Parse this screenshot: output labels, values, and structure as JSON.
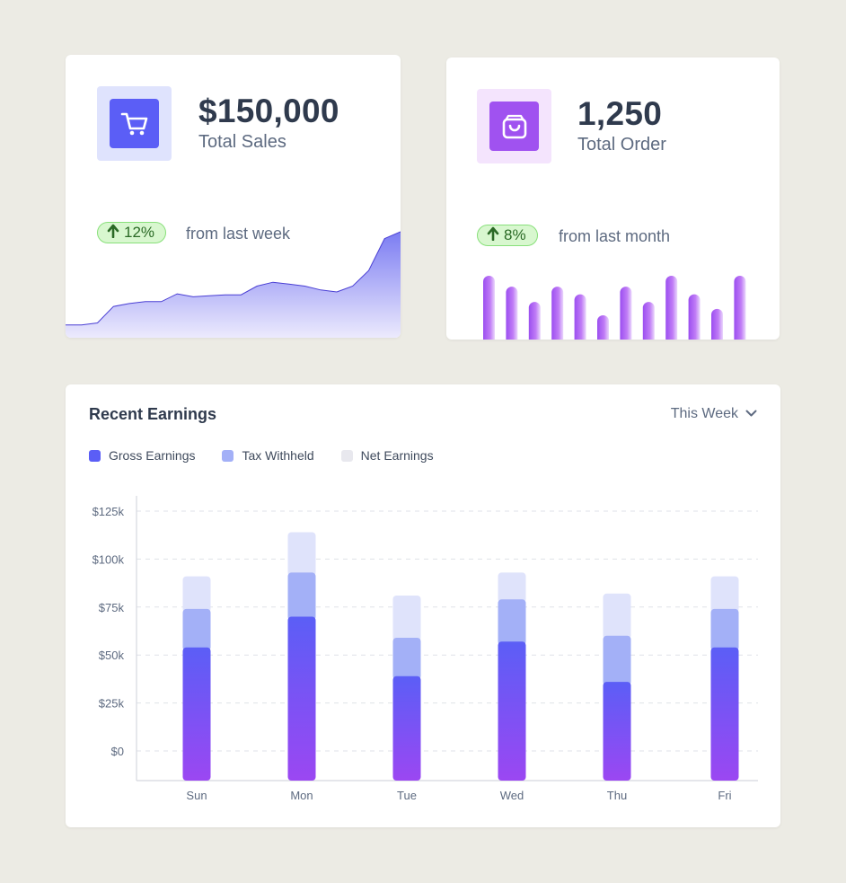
{
  "sales_card": {
    "value": "$150,000",
    "label": "Total Sales",
    "icon": "cart-icon",
    "change": "12%",
    "change_note": "from last week",
    "sparkline": [
      4,
      4,
      6,
      23,
      26,
      28,
      28,
      36,
      33,
      34,
      35,
      35,
      44,
      48,
      46,
      44,
      40,
      38,
      44,
      60,
      93,
      100
    ]
  },
  "orders_card": {
    "value": "1,250",
    "label": "Total Order",
    "icon": "shopping-bag-icon",
    "change": "8%",
    "change_note": "from last month",
    "bars": [
      100,
      83,
      59,
      83,
      71,
      38,
      83,
      59,
      100,
      71,
      48,
      100
    ]
  },
  "earnings": {
    "title": "Recent Earnings",
    "period": "This Week",
    "legend": [
      {
        "label": "Gross Earnings",
        "color": "#5b5ef6"
      },
      {
        "label": "Tax Withheld",
        "color": "#a3b0f7"
      },
      {
        "label": "Net Earnings",
        "color": "#e8e8ee"
      }
    ]
  },
  "chart_data": {
    "type": "bar",
    "stacked": true,
    "categories": [
      "Sun",
      "Mon",
      "Tue",
      "Wed",
      "Thu",
      "Fri"
    ],
    "series": [
      {
        "name": "Gross Earnings",
        "values": [
          71,
          87,
          56,
          74,
          53,
          71
        ]
      },
      {
        "name": "Tax Withheld",
        "values": [
          20,
          23,
          20,
          22,
          24,
          20
        ]
      },
      {
        "name": "Net Earnings",
        "values": [
          17,
          21,
          22,
          14,
          22,
          17
        ]
      }
    ],
    "y_ticks": [
      "$0",
      "$25k",
      "$50k",
      "$75k",
      "$100k",
      "$125k"
    ],
    "ylim": [
      -17,
      133
    ],
    "grid": true
  },
  "colors": {
    "accent_indigo": "#5b5ef6",
    "accent_purple": "#a052f0",
    "success_green": "#2b6a26"
  }
}
